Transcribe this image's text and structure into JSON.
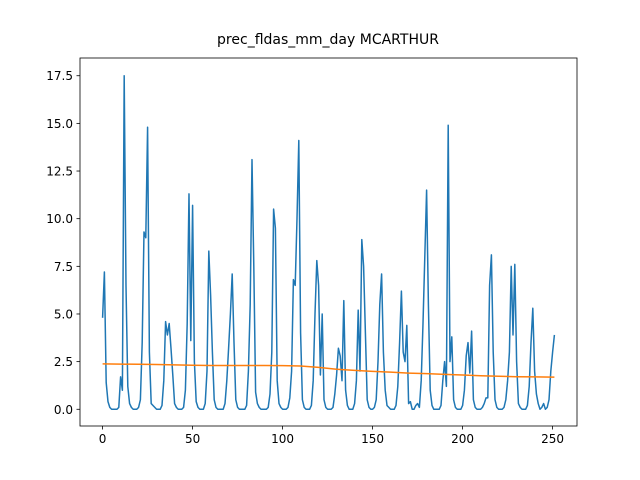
{
  "chart_data": {
    "type": "line",
    "title": "prec_fldas_mm_day MCARTHUR",
    "x": [
      0,
      1,
      2,
      3,
      4,
      5,
      6,
      7,
      8,
      9,
      10,
      11,
      12,
      13,
      14,
      15,
      16,
      17,
      18,
      19,
      20,
      21,
      22,
      23,
      24,
      25,
      26,
      27,
      28,
      29,
      30,
      31,
      32,
      33,
      34,
      35,
      36,
      37,
      38,
      39,
      40,
      41,
      42,
      43,
      44,
      45,
      46,
      47,
      48,
      49,
      50,
      51,
      52,
      53,
      54,
      55,
      56,
      57,
      58,
      59,
      60,
      61,
      62,
      63,
      64,
      65,
      66,
      67,
      68,
      69,
      70,
      71,
      72,
      73,
      74,
      75,
      76,
      77,
      78,
      79,
      80,
      81,
      82,
      83,
      84,
      85,
      86,
      87,
      88,
      89,
      90,
      91,
      92,
      93,
      94,
      95,
      96,
      97,
      98,
      99,
      100,
      101,
      102,
      103,
      104,
      105,
      106,
      107,
      108,
      109,
      110,
      111,
      112,
      113,
      114,
      115,
      116,
      117,
      118,
      119,
      120,
      121,
      122,
      123,
      124,
      125,
      126,
      127,
      128,
      129,
      130,
      131,
      132,
      133,
      134,
      135,
      136,
      137,
      138,
      139,
      140,
      141,
      142,
      143,
      144,
      145,
      146,
      147,
      148,
      149,
      150,
      151,
      152,
      153,
      154,
      155,
      156,
      157,
      158,
      159,
      160,
      161,
      162,
      163,
      164,
      165,
      166,
      167,
      168,
      169,
      170,
      171,
      172,
      173,
      174,
      175,
      176,
      177,
      178,
      179,
      180,
      181,
      182,
      183,
      184,
      185,
      186,
      187,
      188,
      189,
      190,
      191,
      192,
      193,
      194,
      195,
      196,
      197,
      198,
      199,
      200,
      201,
      202,
      203,
      204,
      205,
      206,
      207,
      208,
      209,
      210,
      211,
      212,
      213,
      214,
      215,
      216,
      217,
      218,
      219,
      220,
      221,
      222,
      223,
      224,
      225,
      226,
      227,
      228,
      229,
      230,
      231,
      232,
      233,
      234,
      235,
      236,
      237,
      238,
      239,
      240,
      241,
      242,
      243,
      244,
      245,
      246,
      247,
      248,
      249,
      250,
      251
    ],
    "series": [
      {
        "color": "#1f77b4",
        "values": [
          4.8,
          7.2,
          1.4,
          0.4,
          0.1,
          0.0,
          0.0,
          0.0,
          0.0,
          0.1,
          1.7,
          1.0,
          17.5,
          6.5,
          1.2,
          0.3,
          0.1,
          0.0,
          0.0,
          0.0,
          0.1,
          0.5,
          3.5,
          9.3,
          9.0,
          14.8,
          3.0,
          0.3,
          0.2,
          0.1,
          0.0,
          0.0,
          0.0,
          0.2,
          1.5,
          4.6,
          3.9,
          4.5,
          3.2,
          1.8,
          0.3,
          0.1,
          0.0,
          0.0,
          0.0,
          0.1,
          1.0,
          4.5,
          11.3,
          3.6,
          10.7,
          2.5,
          0.4,
          0.1,
          0.0,
          0.0,
          0.0,
          0.3,
          2.0,
          8.3,
          6.0,
          3.0,
          0.5,
          0.1,
          0.0,
          0.0,
          0.0,
          0.0,
          0.3,
          1.5,
          3.2,
          5.0,
          7.1,
          3.5,
          0.5,
          0.1,
          0.0,
          0.0,
          0.0,
          0.0,
          0.2,
          2.0,
          5.5,
          13.1,
          7.5,
          0.9,
          0.3,
          0.1,
          0.0,
          0.0,
          0.0,
          0.0,
          0.1,
          0.8,
          3.0,
          10.5,
          9.5,
          1.5,
          0.3,
          0.1,
          0.0,
          0.0,
          0.0,
          0.1,
          0.6,
          2.0,
          6.8,
          6.5,
          10.0,
          14.1,
          4.0,
          0.5,
          0.1,
          0.0,
          0.0,
          0.0,
          0.2,
          1.5,
          5.0,
          7.8,
          6.5,
          1.8,
          5.0,
          0.5,
          0.1,
          0.0,
          0.0,
          0.0,
          0.1,
          0.8,
          1.8,
          3.2,
          2.8,
          1.5,
          5.7,
          1.0,
          0.2,
          0.0,
          0.0,
          0.0,
          0.3,
          1.5,
          5.2,
          2.0,
          8.9,
          7.5,
          4.0,
          0.5,
          0.1,
          0.0,
          0.0,
          0.1,
          0.5,
          2.5,
          5.5,
          7.1,
          3.0,
          1.0,
          0.2,
          0.1,
          0.0,
          0.0,
          0.0,
          0.2,
          1.2,
          3.5,
          6.2,
          3.0,
          2.5,
          4.4,
          0.3,
          0.4,
          0.0,
          0.0,
          0.2,
          0.3,
          0.1,
          1.5,
          4.5,
          8.0,
          11.5,
          5.5,
          1.0,
          0.2,
          0.0,
          0.0,
          0.0,
          0.0,
          0.2,
          1.5,
          2.5,
          1.2,
          14.9,
          2.5,
          3.8,
          0.5,
          0.1,
          0.0,
          0.0,
          0.0,
          0.2,
          1.0,
          2.8,
          3.5,
          1.9,
          4.1,
          0.5,
          0.1,
          0.0,
          0.0,
          0.0,
          0.1,
          0.3,
          0.6,
          0.6,
          6.5,
          8.1,
          3.0,
          0.5,
          0.1,
          0.0,
          0.0,
          0.0,
          0.1,
          0.5,
          1.5,
          3.0,
          7.5,
          3.9,
          7.6,
          2.5,
          0.3,
          0.1,
          0.0,
          0.0,
          0.0,
          0.2,
          1.2,
          3.5,
          5.3,
          2.0,
          0.8,
          0.3,
          0.0,
          0.1,
          0.3,
          0.0,
          0.1,
          0.5,
          2.0,
          3.0,
          3.9
        ]
      },
      {
        "color": "#ff7f0e",
        "x": [
          0,
          10,
          20,
          30,
          40,
          50,
          60,
          70,
          80,
          90,
          100,
          110,
          120,
          130,
          140,
          150,
          160,
          170,
          180,
          190,
          200,
          210,
          220,
          230,
          240,
          250,
          251
        ],
        "values": [
          2.38,
          2.37,
          2.36,
          2.35,
          2.33,
          2.31,
          2.3,
          2.3,
          2.3,
          2.3,
          2.29,
          2.27,
          2.2,
          2.1,
          2.04,
          1.99,
          1.95,
          1.9,
          1.87,
          1.83,
          1.8,
          1.76,
          1.73,
          1.71,
          1.7,
          1.69,
          1.69
        ]
      }
    ],
    "xlim": [
      -12.55,
      263.55
    ],
    "xticks": [
      0,
      50,
      100,
      150,
      200,
      250
    ],
    "ylim": [
      -0.877,
      18.43
    ],
    "yticks": [
      {
        "value": 0,
        "label": "0.0"
      },
      2.5,
      {
        "value": 5,
        "label": "5.0"
      },
      7.5,
      {
        "value": 10,
        "label": "10.0"
      },
      12.5,
      {
        "value": 15,
        "label": "15.0"
      },
      17.5
    ]
  }
}
